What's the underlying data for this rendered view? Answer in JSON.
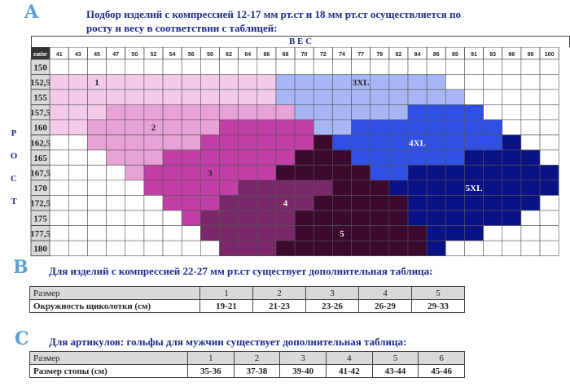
{
  "section_a": {
    "letter": "A",
    "heading_line1": "Подбор изделий с компрессией 12-17 мм рт.ст  и 18 мм рт.ст  осуществляется по",
    "heading_line2": "росту и весу в соответствии с таблицей:",
    "weight_label": "В  Е  С",
    "height_label_letters": [
      "Р",
      "О",
      "С",
      "Т"
    ],
    "corner_label": "см/кг",
    "weights": [
      "41",
      "43",
      "45",
      "47",
      "50",
      "52",
      "54",
      "56",
      "59",
      "62",
      "64",
      "66",
      "68",
      "70",
      "72",
      "74",
      "77",
      "79",
      "82",
      "84",
      "86",
      "89",
      "91",
      "93",
      "96",
      "98",
      "100"
    ],
    "heights": [
      "150",
      "152,5",
      "155",
      "157,5",
      "160",
      "162,5",
      "165",
      "167,5",
      "170",
      "172,5",
      "175",
      "177,5",
      "180"
    ],
    "palette": {
      "0": "#ffffff",
      "1": "#f3cbe9",
      "2": "#e8a2d6",
      "3": "#c23fa8",
      "4": "#7a2869",
      "5": "#3c0a2e",
      "x3": "#a8b6f5",
      "x4": "#2f4fe5",
      "x5": "#0a1385"
    },
    "grid": [
      "0,0,0,0,0,0,0,0,0,0,0,0,0,0,0,0,0,0,0,0,0,0,0,0,0,0,0",
      "1,1,1,1,1,1,1,1,1,1,1,1,x3,x3,x3,x3,x3,x3,x3,x3,x3,0,0,0,0,0,0",
      "1,1,1,1,1,1,1,1,1,1,1,1,x3,x3,x3,x3,x3,x3,x3,x3,x3,x3,0,0,0,0,0",
      "1,1,1,2,2,2,2,2,2,2,2,2,2,x3,x3,x3,x3,x3,x3,x4,x4,x4,x4,0,0,0,0",
      "1,1,2,2,2,2,2,2,2,3,3,3,3,3,x3,x3,x4,x4,x4,x4,x4,x4,x4,x4,0,0,0",
      "0,0,2,2,2,2,2,2,3,3,3,3,3,3,5,x4,x4,x4,x4,x4,x4,x4,x4,x4,x5,0,0",
      "0,0,0,2,2,2,3,3,3,3,3,3,3,5,5,5,x4,x4,x4,x4,x4,x4,x5,x5,x5,x5,0",
      "0,0,0,0,2,3,3,3,3,3,3,3,5,5,5,5,5,x4,x4,x5,x5,x5,x5,x5,x5,x5,x5",
      "0,0,0,0,0,3,3,3,3,3,4,4,4,4,4,5,5,5,x5,x5,x5,x5,x5,x5,x5,x5,x5",
      "0,0,0,0,0,0,3,3,3,4,4,4,4,4,5,5,5,5,5,x5,x5,x5,x5,x5,x5,x5,0",
      "0,0,0,0,0,0,0,3,4,4,4,4,4,5,5,5,5,5,5,x5,x5,x5,x5,x5,x5,0,0",
      "0,0,0,0,0,0,0,0,4,4,4,4,4,5,5,5,5,5,5,5,x5,x5,x5,0,0,0,0",
      "0,0,0,0,0,0,0,0,0,4,4,4,5,5,5,5,5,5,5,5,x5,0,0,0,0,0,0"
    ],
    "zones": [
      {
        "label": "1",
        "row": 1,
        "col": 2,
        "color": "#222222"
      },
      {
        "label": "2",
        "row": 4,
        "col": 5,
        "color": "#222222"
      },
      {
        "label": "3",
        "row": 7,
        "col": 8,
        "color": "#222222"
      },
      {
        "label": "4",
        "row": 9,
        "col": 12,
        "color": "#ffffff"
      },
      {
        "label": "5",
        "row": 11,
        "col": 15,
        "color": "#ffffff"
      },
      {
        "label": "3XL",
        "row": 1,
        "col": 16,
        "color": "#222222"
      },
      {
        "label": "4XL",
        "row": 5,
        "col": 19,
        "color": "#ffffff"
      },
      {
        "label": "5XL",
        "row": 8,
        "col": 22,
        "color": "#ffffff"
      }
    ]
  },
  "section_b": {
    "letter": "B",
    "heading": "Для изделий с компрессией 22-27 мм рт.ст существует дополнительная таблица:",
    "header_label": "Размер",
    "sizes": [
      "1",
      "2",
      "3",
      "4",
      "5"
    ],
    "row_label": "Окружность щиколотки (см)",
    "row_values": [
      "19-21",
      "21-23",
      "23-26",
      "26-29",
      "29-33"
    ]
  },
  "section_c": {
    "letter": "C",
    "heading": "Для артикулов: гольфы для мужчин существует дополнительная таблица:",
    "header_label": "Размер",
    "sizes": [
      "1",
      "2",
      "3",
      "4",
      "5",
      "6"
    ],
    "row_label": "Размер стопы (см)",
    "row_values": [
      "35-36",
      "37-38",
      "39-40",
      "41-42",
      "43-44",
      "45-46"
    ]
  }
}
